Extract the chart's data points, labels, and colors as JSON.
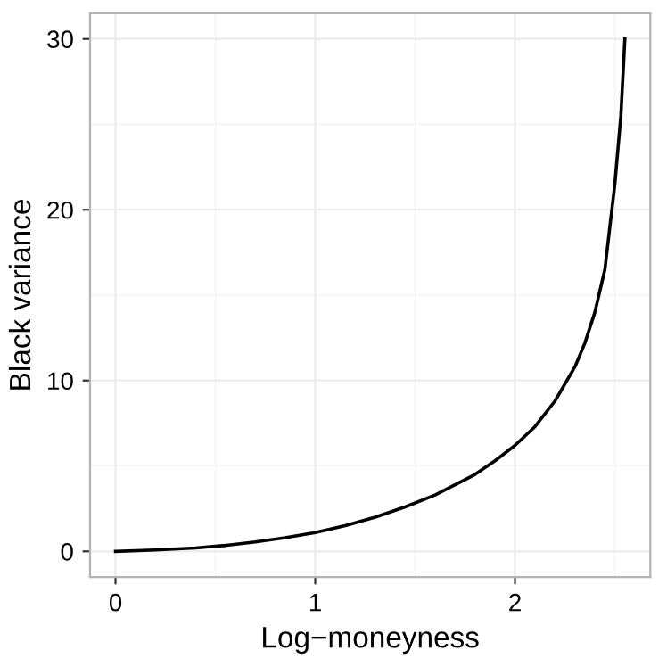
{
  "chart_data": {
    "type": "line",
    "xlabel": "Log−moneyness",
    "ylabel": "Black variance",
    "x": [
      0,
      0.2,
      0.4,
      0.55,
      0.7,
      0.85,
      1.0,
      1.15,
      1.3,
      1.45,
      1.6,
      1.7,
      1.8,
      1.9,
      2.0,
      2.1,
      2.2,
      2.3,
      2.35,
      2.4,
      2.45,
      2.5,
      2.53,
      2.55
    ],
    "series": [
      {
        "color": "#000000",
        "values": [
          0,
          0.08,
          0.2,
          0.35,
          0.55,
          0.8,
          1.1,
          1.5,
          2.0,
          2.6,
          3.3,
          3.9,
          4.5,
          5.3,
          6.2,
          7.3,
          8.8,
          10.8,
          12.2,
          14,
          16.5,
          21.5,
          25.5,
          30
        ]
      }
    ],
    "xlim": [
      -0.1275,
      2.6775
    ],
    "ylim": [
      -1.5,
      31.5
    ],
    "xticks": [
      0,
      1,
      2
    ],
    "yticks": [
      0,
      10,
      20,
      30
    ],
    "grid": true,
    "line_style": "solid",
    "marker": "none"
  }
}
